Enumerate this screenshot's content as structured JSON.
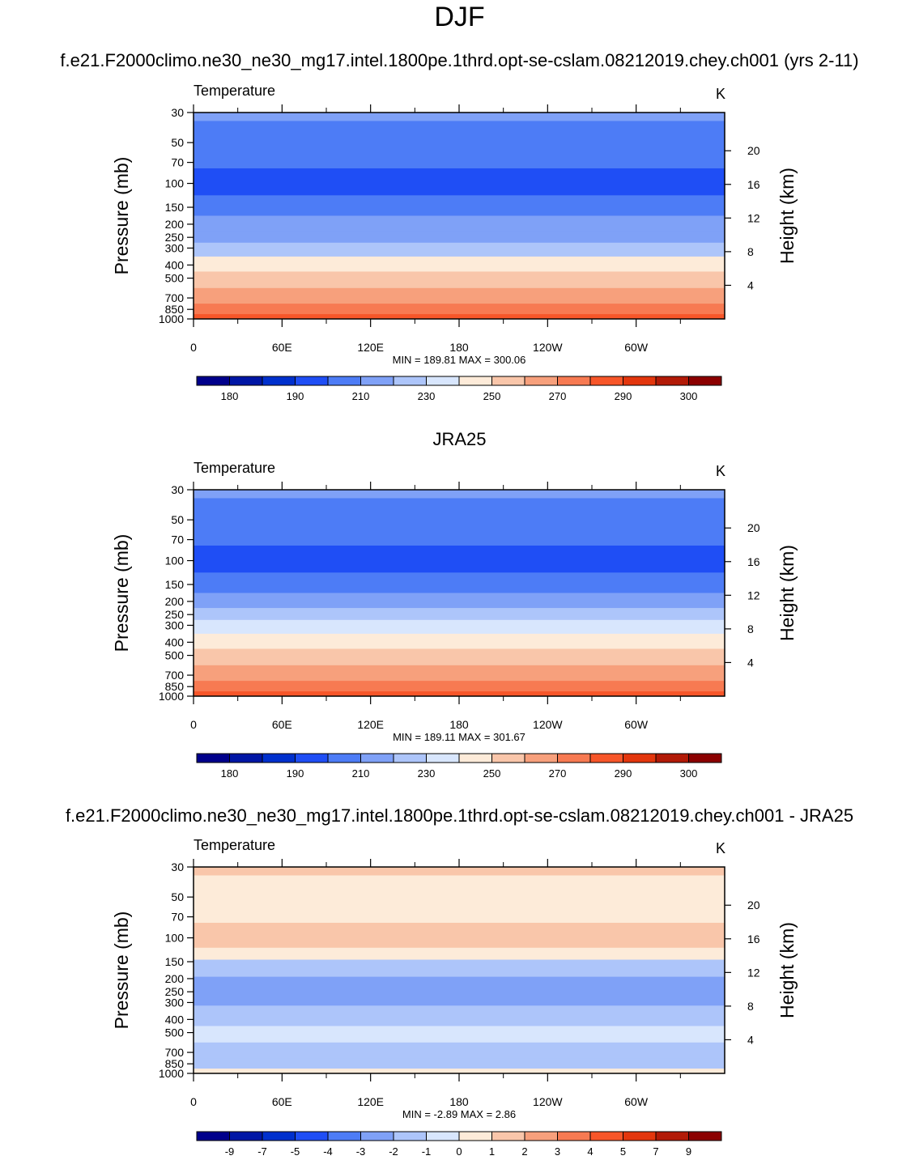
{
  "figure": {
    "title": "DJF",
    "panel_titles": [
      "f.e21.F2000climo.ne30_ne30_mg17.intel.1800pe.1thrd.opt-se-cslam.08212019.chey.ch001 (yrs 2-11)",
      "JRA25",
      "f.e21.F2000climo.ne30_ne30_mg17.intel.1800pe.1thrd.opt-se-cslam.08212019.chey.ch001 - JRA25"
    ]
  },
  "chart_data": [
    {
      "type": "heatmap",
      "title": "f.e21.F2000climo.ne30_ne30_mg17.intel.1800pe.1thrd.opt-se-cslam.08212019.chey.ch001 (yrs 2-11)",
      "variable": "Temperature",
      "units": "K",
      "xlabel": "",
      "ylabel": "Pressure (mb)",
      "ylabel_right": "Height (km)",
      "x_ticks": [
        "0",
        "60E",
        "120E",
        "180",
        "120W",
        "60W"
      ],
      "y_ticks": [
        "30",
        "50",
        "70",
        "100",
        "150",
        "200",
        "250",
        "300",
        "400",
        "500",
        "700",
        "850",
        "1000"
      ],
      "y_right_ticks": [
        "20",
        "16",
        "12",
        "8",
        "4"
      ],
      "stats": "MIN = 189.81  MAX = 300.06",
      "levels": [
        185,
        195,
        205,
        215,
        225,
        235,
        245,
        255,
        265,
        275,
        285,
        295
      ],
      "colorbar_labels": [
        "180",
        "190",
        "210",
        "230",
        "250",
        "270",
        "290",
        "300"
      ],
      "colors": [
        "#00008b",
        "#0016a5",
        "#0030cd",
        "#1f4ef5",
        "#4d7cf6",
        "#7fa1f7",
        "#adc5fa",
        "#d8e6fd",
        "#fdebd9",
        "#f9c6aa",
        "#f7a07c",
        "#f77a52",
        "#f75629",
        "#e3360d",
        "#b21a07",
        "#8b0000"
      ],
      "band_levels": [
        {
          "pressure": 30,
          "value": 217
        },
        {
          "pressure": 40,
          "value": 212
        },
        {
          "pressure": 60,
          "value": 205
        },
        {
          "pressure": 100,
          "value": 204
        },
        {
          "pressure": 150,
          "value": 211
        },
        {
          "pressure": 200,
          "value": 218
        },
        {
          "pressure": 250,
          "value": 224
        },
        {
          "pressure": 300,
          "value": 233
        },
        {
          "pressure": 400,
          "value": 250
        },
        {
          "pressure": 500,
          "value": 258
        },
        {
          "pressure": 700,
          "value": 272
        },
        {
          "pressure": 850,
          "value": 283
        },
        {
          "pressure": 1000,
          "value": 292
        }
      ]
    },
    {
      "type": "heatmap",
      "title": "JRA25",
      "variable": "Temperature",
      "units": "K",
      "xlabel": "",
      "ylabel": "Pressure (mb)",
      "ylabel_right": "Height (km)",
      "x_ticks": [
        "0",
        "60E",
        "120E",
        "180",
        "120W",
        "60W"
      ],
      "y_ticks": [
        "30",
        "50",
        "70",
        "100",
        "150",
        "200",
        "250",
        "300",
        "400",
        "500",
        "700",
        "850",
        "1000"
      ],
      "y_right_ticks": [
        "20",
        "16",
        "12",
        "8",
        "4"
      ],
      "stats": "MIN = 189.11  MAX = 301.67",
      "levels": [
        185,
        195,
        205,
        215,
        225,
        235,
        245,
        255,
        265,
        275,
        285,
        295
      ],
      "colorbar_labels": [
        "180",
        "190",
        "210",
        "230",
        "250",
        "270",
        "290",
        "300"
      ],
      "colors": [
        "#00008b",
        "#0016a5",
        "#0030cd",
        "#1f4ef5",
        "#4d7cf6",
        "#7fa1f7",
        "#adc5fa",
        "#d8e6fd",
        "#fdebd9",
        "#f9c6aa",
        "#f7a07c",
        "#f77a52",
        "#f75629",
        "#e3360d",
        "#b21a07",
        "#8b0000"
      ],
      "band_levels": [
        {
          "pressure": 30,
          "value": 216
        },
        {
          "pressure": 40,
          "value": 211
        },
        {
          "pressure": 60,
          "value": 205
        },
        {
          "pressure": 100,
          "value": 203
        },
        {
          "pressure": 150,
          "value": 212
        },
        {
          "pressure": 200,
          "value": 219
        },
        {
          "pressure": 250,
          "value": 225
        },
        {
          "pressure": 300,
          "value": 236
        },
        {
          "pressure": 400,
          "value": 251
        },
        {
          "pressure": 500,
          "value": 260
        },
        {
          "pressure": 700,
          "value": 274
        },
        {
          "pressure": 850,
          "value": 284
        },
        {
          "pressure": 1000,
          "value": 293
        }
      ]
    },
    {
      "type": "heatmap",
      "title": "f.e21.F2000climo.ne30_ne30_mg17.intel.1800pe.1thrd.opt-se-cslam.08212019.chey.ch001 - JRA25",
      "variable": "Temperature",
      "units": "K",
      "xlabel": "",
      "ylabel": "Pressure (mb)",
      "ylabel_right": "Height (km)",
      "x_ticks": [
        "0",
        "60E",
        "120E",
        "180",
        "120W",
        "60W"
      ],
      "y_ticks": [
        "30",
        "50",
        "70",
        "100",
        "150",
        "200",
        "250",
        "300",
        "400",
        "500",
        "700",
        "850",
        "1000"
      ],
      "y_right_ticks": [
        "20",
        "16",
        "12",
        "8",
        "4"
      ],
      "stats": "MIN =  -2.89  MAX =   2.86",
      "levels": [
        -9,
        -7,
        -5,
        -4,
        -3,
        -2,
        -1,
        0,
        1,
        2,
        3,
        4,
        5,
        7,
        9
      ],
      "colorbar_labels": [
        "-9",
        "-7",
        "-5",
        "-4",
        "-3",
        "-2",
        "-1",
        "0",
        "1",
        "2",
        "3",
        "4",
        "5",
        "7",
        "9"
      ],
      "colors": [
        "#00008b",
        "#0016a5",
        "#0030cd",
        "#1f4ef5",
        "#4d7cf6",
        "#7fa1f7",
        "#adc5fa",
        "#d8e6fd",
        "#fdebd9",
        "#f9c6aa",
        "#f7a07c",
        "#f77a52",
        "#f75629",
        "#e3360d",
        "#b21a07",
        "#8b0000"
      ],
      "band_levels": [
        {
          "pressure": 30,
          "value": 1.2
        },
        {
          "pressure": 40,
          "value": 0.5
        },
        {
          "pressure": 60,
          "value": 0.4
        },
        {
          "pressure": 100,
          "value": 1.1
        },
        {
          "pressure": 140,
          "value": 0.2
        },
        {
          "pressure": 150,
          "value": -1.2
        },
        {
          "pressure": 250,
          "value": -2.1
        },
        {
          "pressure": 400,
          "value": -1.6
        },
        {
          "pressure": 500,
          "value": -0.9
        },
        {
          "pressure": 700,
          "value": -1.5
        },
        {
          "pressure": 850,
          "value": -1.4
        },
        {
          "pressure": 1000,
          "value": 0.3
        }
      ]
    }
  ]
}
